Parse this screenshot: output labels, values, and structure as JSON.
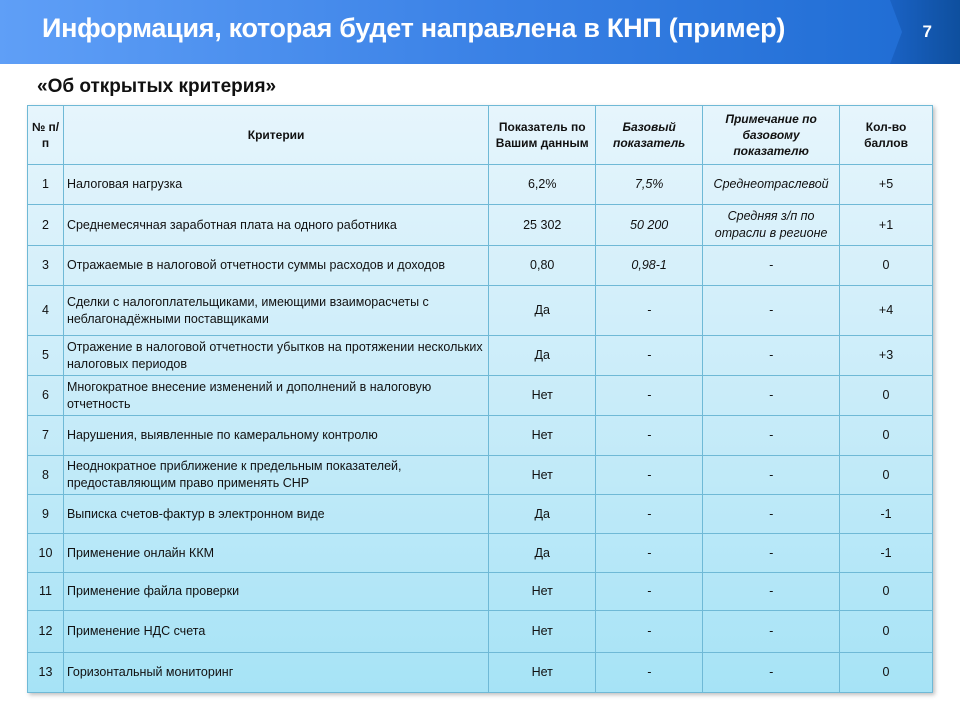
{
  "header": {
    "title": "Информация, которая будет направлена в КНП (пример)",
    "page_number": "7"
  },
  "subtitle": "«Об открытых критерия»",
  "table": {
    "columns": [
      "№ п/п",
      "Критерии",
      "Показатель по Вашим данным",
      "Базовый показатель",
      "Примечание по базовому показателю",
      "Кол-во баллов"
    ],
    "rows": [
      {
        "num": "1",
        "criterion": "Налоговая нагрузка",
        "value": "6,2%",
        "base": "7,5%",
        "note": "Среднеотраслевой",
        "points": "+5"
      },
      {
        "num": "2",
        "criterion": "Среднемесячная заработная плата на одного работника",
        "value": "25 302",
        "base": "50 200",
        "note": "Средняя з/п по отрасли в регионе",
        "points": "+1"
      },
      {
        "num": "3",
        "criterion": "Отражаемые в налоговой отчетности суммы расходов и доходов",
        "value": "0,80",
        "base": "0,98-1",
        "note": "-",
        "points": "0"
      },
      {
        "num": "4",
        "criterion": "Сделки с налогоплательщиками, имеющими взаиморасчеты с неблагонадёжными поставщиками",
        "value": "Да",
        "base": "-",
        "note": "-",
        "points": "+4"
      },
      {
        "num": "5",
        "criterion": "Отражение в налоговой отчетности убытков на протяжении нескольких налоговых периодов",
        "value": "Да",
        "base": "-",
        "note": "-",
        "points": "+3"
      },
      {
        "num": "6",
        "criterion": "Многократное  внесение изменений и дополнений в налоговую отчетность",
        "value": "Нет",
        "base": "-",
        "note": "-",
        "points": "0"
      },
      {
        "num": "7",
        "criterion": "Нарушения, выявленные по камеральному контролю",
        "value": "Нет",
        "base": "-",
        "note": "-",
        "points": "0"
      },
      {
        "num": "8",
        "criterion": "Неоднократное приближение к предельным показателей, предоставляющим право применять СНР",
        "value": "Нет",
        "base": "-",
        "note": "-",
        "points": "0"
      },
      {
        "num": "9",
        "criterion": "Выписка счетов-фактур в электронном виде",
        "value": "Да",
        "base": "-",
        "note": "-",
        "points": "-1"
      },
      {
        "num": "10",
        "criterion": "Применение онлайн ККМ",
        "value": "Да",
        "base": "-",
        "note": "-",
        "points": "-1"
      },
      {
        "num": "11",
        "criterion": "Применение файла проверки",
        "value": "Нет",
        "base": "-",
        "note": "-",
        "points": "0"
      },
      {
        "num": "12",
        "criterion": "Применение НДС счета",
        "value": "Нет",
        "base": "-",
        "note": "-",
        "points": "0"
      },
      {
        "num": "13",
        "criterion": "Горизонтальный мониторинг",
        "value": "Нет",
        "base": "-",
        "note": "-",
        "points": "0"
      }
    ]
  }
}
